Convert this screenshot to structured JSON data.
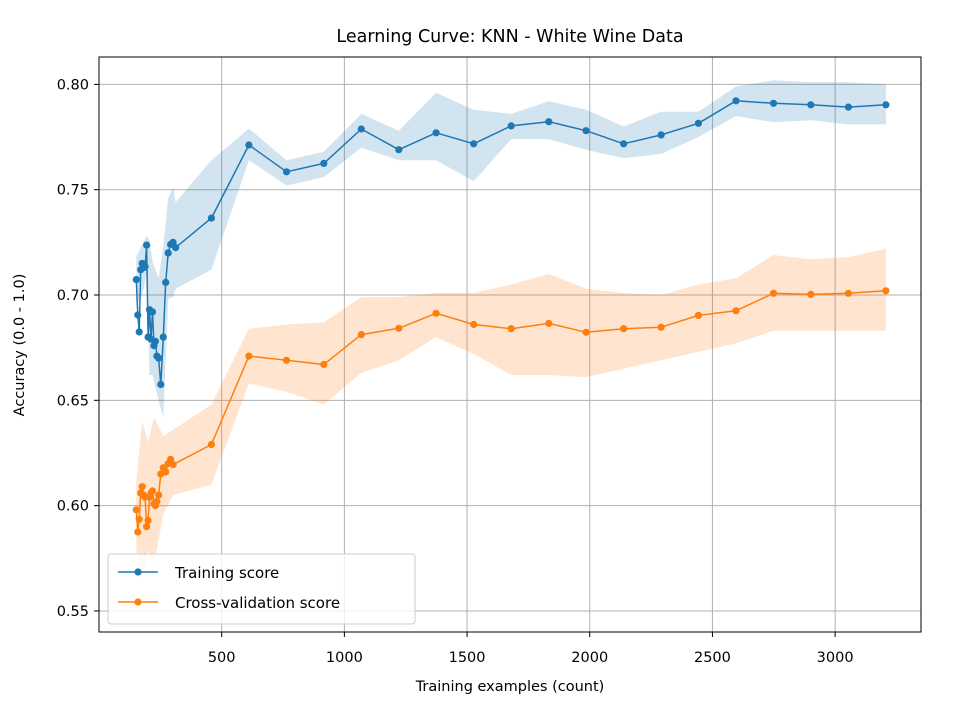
{
  "chart_data": {
    "type": "line",
    "title": "Learning Curve: KNN - White Wine Data",
    "xlabel": "Training examples (count)",
    "ylabel": "Accuracy (0.0 - 1.0)",
    "xlim": [
      0,
      3350
    ],
    "ylim": [
      0.54,
      0.813
    ],
    "xticks": [
      500,
      1000,
      1500,
      2000,
      2500,
      3000
    ],
    "xtick_labels": [
      "500",
      "1000",
      "1500",
      "2000",
      "2500",
      "3000"
    ],
    "yticks": [
      0.55,
      0.6,
      0.65,
      0.7,
      0.75,
      0.8
    ],
    "ytick_labels": [
      "0.55",
      "0.60",
      "0.65",
      "0.70",
      "0.75",
      "0.80"
    ],
    "grid": true,
    "legend_position": "lower-left",
    "series": [
      {
        "name": "Training score",
        "color": "#1f77b4",
        "points": [
          [
            152,
            0.7073
          ],
          [
            158,
            0.6905
          ],
          [
            164,
            0.6825
          ],
          [
            170,
            0.712
          ],
          [
            176,
            0.715
          ],
          [
            182,
            0.713
          ],
          [
            188,
            0.7135
          ],
          [
            194,
            0.7237
          ],
          [
            200,
            0.68
          ],
          [
            206,
            0.693
          ],
          [
            212,
            0.679
          ],
          [
            218,
            0.692
          ],
          [
            224,
            0.676
          ],
          [
            230,
            0.678
          ],
          [
            236,
            0.671
          ],
          [
            243,
            0.67
          ],
          [
            252,
            0.6575
          ],
          [
            262,
            0.68
          ],
          [
            272,
            0.706
          ],
          [
            282,
            0.72
          ],
          [
            292,
            0.724
          ],
          [
            302,
            0.725
          ],
          [
            312,
            0.7225
          ],
          [
            458,
            0.7365
          ],
          [
            611,
            0.7712
          ],
          [
            764,
            0.7585
          ],
          [
            916,
            0.7625
          ],
          [
            1069,
            0.7788
          ],
          [
            1222,
            0.769
          ],
          [
            1374,
            0.777
          ],
          [
            1527,
            0.7718
          ],
          [
            1680,
            0.7803
          ],
          [
            1833,
            0.7823
          ],
          [
            1985,
            0.778
          ],
          [
            2138,
            0.7718
          ],
          [
            2291,
            0.776
          ],
          [
            2443,
            0.7815
          ],
          [
            2596,
            0.7922
          ],
          [
            2749,
            0.791
          ],
          [
            2901,
            0.7903
          ],
          [
            3054,
            0.7892
          ],
          [
            3207,
            0.7903
          ]
        ],
        "band_upper": [
          [
            152,
            0.718
          ],
          [
            176,
            0.724
          ],
          [
            194,
            0.728
          ],
          [
            206,
            0.726
          ],
          [
            218,
            0.716
          ],
          [
            243,
            0.708
          ],
          [
            262,
            0.723
          ],
          [
            282,
            0.746
          ],
          [
            302,
            0.751
          ],
          [
            312,
            0.744
          ],
          [
            458,
            0.764
          ],
          [
            611,
            0.779
          ],
          [
            764,
            0.764
          ],
          [
            916,
            0.768
          ],
          [
            1069,
            0.786
          ],
          [
            1222,
            0.778
          ],
          [
            1374,
            0.796
          ],
          [
            1527,
            0.788
          ],
          [
            1680,
            0.786
          ],
          [
            1833,
            0.792
          ],
          [
            1985,
            0.788
          ],
          [
            2138,
            0.78
          ],
          [
            2291,
            0.787
          ],
          [
            2443,
            0.787
          ],
          [
            2596,
            0.799
          ],
          [
            2749,
            0.802
          ],
          [
            2901,
            0.801
          ],
          [
            3054,
            0.801
          ],
          [
            3207,
            0.8
          ]
        ],
        "band_lower": [
          [
            152,
            0.695
          ],
          [
            176,
            0.7
          ],
          [
            194,
            0.71
          ],
          [
            206,
            0.662
          ],
          [
            218,
            0.662
          ],
          [
            243,
            0.65
          ],
          [
            262,
            0.642
          ],
          [
            282,
            0.698
          ],
          [
            302,
            0.699
          ],
          [
            312,
            0.703
          ],
          [
            458,
            0.712
          ],
          [
            611,
            0.764
          ],
          [
            764,
            0.752
          ],
          [
            916,
            0.756
          ],
          [
            1069,
            0.77
          ],
          [
            1222,
            0.764
          ],
          [
            1374,
            0.764
          ],
          [
            1527,
            0.754
          ],
          [
            1680,
            0.774
          ],
          [
            1833,
            0.774
          ],
          [
            1985,
            0.769
          ],
          [
            2138,
            0.765
          ],
          [
            2291,
            0.767
          ],
          [
            2443,
            0.775
          ],
          [
            2596,
            0.785
          ],
          [
            2749,
            0.782
          ],
          [
            2901,
            0.783
          ],
          [
            3054,
            0.781
          ],
          [
            3207,
            0.781
          ]
        ]
      },
      {
        "name": "Cross-validation score",
        "color": "#ff7f0e",
        "points": [
          [
            152,
            0.598
          ],
          [
            158,
            0.5875
          ],
          [
            164,
            0.5935
          ],
          [
            170,
            0.606
          ],
          [
            176,
            0.609
          ],
          [
            182,
            0.605
          ],
          [
            188,
            0.604
          ],
          [
            194,
            0.59
          ],
          [
            200,
            0.593
          ],
          [
            206,
            0.604
          ],
          [
            212,
            0.606
          ],
          [
            218,
            0.607
          ],
          [
            224,
            0.601
          ],
          [
            230,
            0.6
          ],
          [
            236,
            0.602
          ],
          [
            243,
            0.605
          ],
          [
            252,
            0.615
          ],
          [
            262,
            0.618
          ],
          [
            272,
            0.616
          ],
          [
            282,
            0.62
          ],
          [
            292,
            0.622
          ],
          [
            302,
            0.6195
          ],
          [
            458,
            0.629
          ],
          [
            611,
            0.671
          ],
          [
            764,
            0.669
          ],
          [
            916,
            0.667
          ],
          [
            1069,
            0.6812
          ],
          [
            1222,
            0.6842
          ],
          [
            1374,
            0.6913
          ],
          [
            1527,
            0.686
          ],
          [
            1680,
            0.684
          ],
          [
            1833,
            0.6865
          ],
          [
            1985,
            0.6823
          ],
          [
            2138,
            0.684
          ],
          [
            2291,
            0.6847
          ],
          [
            2443,
            0.6903
          ],
          [
            2596,
            0.6925
          ],
          [
            2749,
            0.7008
          ],
          [
            2901,
            0.7003
          ],
          [
            3054,
            0.7008
          ],
          [
            3207,
            0.702
          ]
        ],
        "band_upper": [
          [
            152,
            0.612
          ],
          [
            176,
            0.64
          ],
          [
            200,
            0.63
          ],
          [
            224,
            0.642
          ],
          [
            262,
            0.633
          ],
          [
            302,
            0.636
          ],
          [
            458,
            0.648
          ],
          [
            611,
            0.684
          ],
          [
            764,
            0.686
          ],
          [
            916,
            0.687
          ],
          [
            1069,
            0.699
          ],
          [
            1222,
            0.699
          ],
          [
            1374,
            0.701
          ],
          [
            1527,
            0.701
          ],
          [
            1680,
            0.705
          ],
          [
            1833,
            0.71
          ],
          [
            1985,
            0.703
          ],
          [
            2138,
            0.701
          ],
          [
            2291,
            0.7
          ],
          [
            2443,
            0.705
          ],
          [
            2596,
            0.708
          ],
          [
            2749,
            0.719
          ],
          [
            2901,
            0.717
          ],
          [
            3054,
            0.718
          ],
          [
            3207,
            0.722
          ]
        ],
        "band_lower": [
          [
            152,
            0.579
          ],
          [
            176,
            0.565
          ],
          [
            200,
            0.579
          ],
          [
            224,
            0.572
          ],
          [
            262,
            0.596
          ],
          [
            302,
            0.605
          ],
          [
            458,
            0.61
          ],
          [
            611,
            0.658
          ],
          [
            764,
            0.654
          ],
          [
            916,
            0.648
          ],
          [
            1069,
            0.663
          ],
          [
            1222,
            0.669
          ],
          [
            1374,
            0.68
          ],
          [
            1527,
            0.672
          ],
          [
            1680,
            0.662
          ],
          [
            1833,
            0.662
          ],
          [
            1985,
            0.661
          ],
          [
            2138,
            0.665
          ],
          [
            2291,
            0.669
          ],
          [
            2443,
            0.673
          ],
          [
            2596,
            0.677
          ],
          [
            2749,
            0.683
          ],
          [
            2901,
            0.683
          ],
          [
            3054,
            0.683
          ],
          [
            3207,
            0.683
          ]
        ]
      }
    ]
  }
}
